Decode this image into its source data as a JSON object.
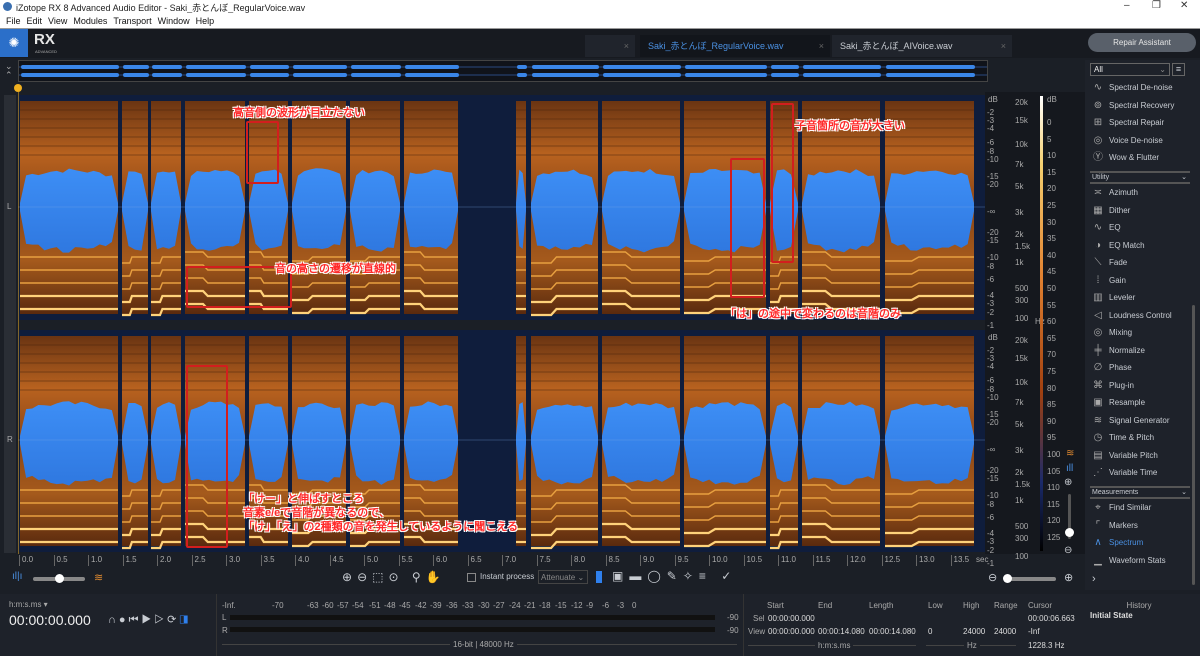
{
  "window": {
    "title": "iZotope RX 8 Advanced Audio Editor - Saki_赤とんぼ_RegularVoice.wav",
    "minimize": "–",
    "restore": "❐",
    "close": "✕"
  },
  "menu": [
    "File",
    "Edit",
    "View",
    "Modules",
    "Transport",
    "Window",
    "Help"
  ],
  "logo": {
    "text": "RX",
    "sub": "ADVANCED"
  },
  "tabs": [
    {
      "label": "Saki_赤とんぼ_RegularVoice.wav",
      "active": true
    },
    {
      "label": "Saki_赤とんぼ_AIVoice.wav",
      "active": false
    }
  ],
  "repair_assistant": "Repair Assistant",
  "channels": [
    "L",
    "R"
  ],
  "db_scale_label": "dB",
  "db_ticks": [
    "-2",
    "-3",
    "-4",
    "-6",
    "-8",
    "-10",
    "-15",
    "-20",
    "-∞",
    "-20",
    "-15",
    "-10",
    "-8",
    "-6",
    "-4",
    "-3",
    "-2",
    "-1"
  ],
  "hz_ticks": [
    "20k",
    "15k",
    "10k",
    "7k",
    "5k",
    "3k",
    "2k",
    "1.5k",
    "1k",
    "500",
    "300",
    "100"
  ],
  "hz_unit": "Hz",
  "color_scale": [
    "0",
    "5",
    "10",
    "15",
    "20",
    "25",
    "30",
    "35",
    "40",
    "45",
    "50",
    "55",
    "60",
    "65",
    "70",
    "75",
    "80",
    "85",
    "90",
    "95",
    "100",
    "105",
    "110",
    "115",
    "120",
    "125"
  ],
  "time_ticks": [
    "0.0",
    "0.5",
    "1.0",
    "1.5",
    "2.0",
    "2.5",
    "3.0",
    "3.5",
    "4.0",
    "4.5",
    "5.0",
    "5.5",
    "6.0",
    "6.5",
    "7.0",
    "7.5",
    "8.0",
    "8.5",
    "9.0",
    "9.5",
    "10.0",
    "10.5",
    "11.0",
    "11.5",
    "12.0",
    "12.5",
    "13.0",
    "13.5"
  ],
  "time_unit": "sec",
  "annotations": {
    "high_freq": "高音側の波形が目立たない",
    "pitch_linear": "音の高さの遷移が直線的",
    "consonant": "子音箇所の音が大きい",
    "ha_only": "「は」の途中で変わるのは音階のみ",
    "ke_lines": [
      "「けー」と伸ばすところ",
      "音素e/eで音階が異なるので、",
      "「け」「え」の2種類の音を発生しているように聞こえる"
    ]
  },
  "toolbar": {
    "instant_process": "Instant process",
    "mode": "Attenuate"
  },
  "transport": {
    "format": "h:m:s.ms ▾",
    "time": "00:00:00.000"
  },
  "meter": {
    "ticks": [
      "-Inf.",
      "-70",
      "-63",
      "-60",
      "-57",
      "-54",
      "-51",
      "-48",
      "-45",
      "-42",
      "-39",
      "-36",
      "-33",
      "-30",
      "-27",
      "-24",
      "-21",
      "-18",
      "-15",
      "-12",
      "-9",
      "-6",
      "-3",
      "0"
    ],
    "peak_l": "-90",
    "peak_r": "-90",
    "format": "16-bit | 48000 Hz"
  },
  "info": {
    "headers": [
      "Start",
      "End",
      "Length",
      "Low",
      "High",
      "Range",
      "Cursor"
    ],
    "sel_label": "Sel",
    "view_label": "View",
    "sel_start": "00:00:00.000",
    "cursor_time": "00:00:06.663",
    "view_start": "00:00:00.000",
    "view_end": "00:00:14.080",
    "view_length": "00:00:14.080",
    "low": "0",
    "high": "24000",
    "range": "24000",
    "cursor_db": "-Inf",
    "cursor_hz": "1228.3 Hz",
    "time_unit": "h:m:s.ms",
    "freq_unit": "Hz"
  },
  "history": {
    "title": "History",
    "items": [
      "Initial State"
    ]
  },
  "modules": {
    "filter": "All",
    "items": [
      {
        "label": "Spectral De-noise",
        "icon": "spectral-denoise-icon",
        "g": "∿"
      },
      {
        "label": "Spectral Recovery",
        "icon": "spectral-recovery-icon",
        "g": "⊚"
      },
      {
        "label": "Spectral Repair",
        "icon": "spectral-repair-icon",
        "g": "⊞"
      },
      {
        "label": "Voice De-noise",
        "icon": "voice-denoise-icon",
        "g": "◎"
      },
      {
        "label": "Wow & Flutter",
        "icon": "wow-flutter-icon",
        "g": "Ⓨ"
      },
      {
        "section": "Utility"
      },
      {
        "label": "Azimuth",
        "icon": "azimuth-icon",
        "g": "≍"
      },
      {
        "label": "Dither",
        "icon": "dither-icon",
        "g": "▦"
      },
      {
        "label": "EQ",
        "icon": "eq-icon",
        "g": "∿"
      },
      {
        "label": "EQ Match",
        "icon": "eq-match-icon",
        "g": "◑"
      },
      {
        "label": "Fade",
        "icon": "fade-icon",
        "g": "⟍"
      },
      {
        "label": "Gain",
        "icon": "gain-icon",
        "g": "⁞"
      },
      {
        "label": "Leveler",
        "icon": "leveler-icon",
        "g": "▥"
      },
      {
        "label": "Loudness Control",
        "icon": "loudness-icon",
        "g": "◁"
      },
      {
        "label": "Mixing",
        "icon": "mixing-icon",
        "g": "◎"
      },
      {
        "label": "Normalize",
        "icon": "normalize-icon",
        "g": "╪"
      },
      {
        "label": "Phase",
        "icon": "phase-icon",
        "g": "∅"
      },
      {
        "label": "Plug-in",
        "icon": "plugin-icon",
        "g": "⌘"
      },
      {
        "label": "Resample",
        "icon": "resample-icon",
        "g": "▣"
      },
      {
        "label": "Signal Generator",
        "icon": "signal-generator-icon",
        "g": "≋"
      },
      {
        "label": "Time & Pitch",
        "icon": "time-pitch-icon",
        "g": "◷"
      },
      {
        "label": "Variable Pitch",
        "icon": "variable-pitch-icon",
        "g": "▤"
      },
      {
        "label": "Variable Time",
        "icon": "variable-time-icon",
        "g": "⋰"
      },
      {
        "section": "Measurements"
      },
      {
        "label": "Find Similar",
        "icon": "find-similar-icon",
        "g": "⌖"
      },
      {
        "label": "Markers",
        "icon": "markers-icon",
        "g": "⌜"
      },
      {
        "label": "Spectrum",
        "icon": "spectrum-icon",
        "g": "∧",
        "active": true
      },
      {
        "label": "Waveform Stats",
        "icon": "waveform-stats-icon",
        "g": "▁"
      }
    ]
  },
  "colors": {
    "accent": "#2f80ed",
    "waveform": "#3a8cf0",
    "annotation": "#d21e1e",
    "spectrum_hot": "#ffcf6a"
  }
}
